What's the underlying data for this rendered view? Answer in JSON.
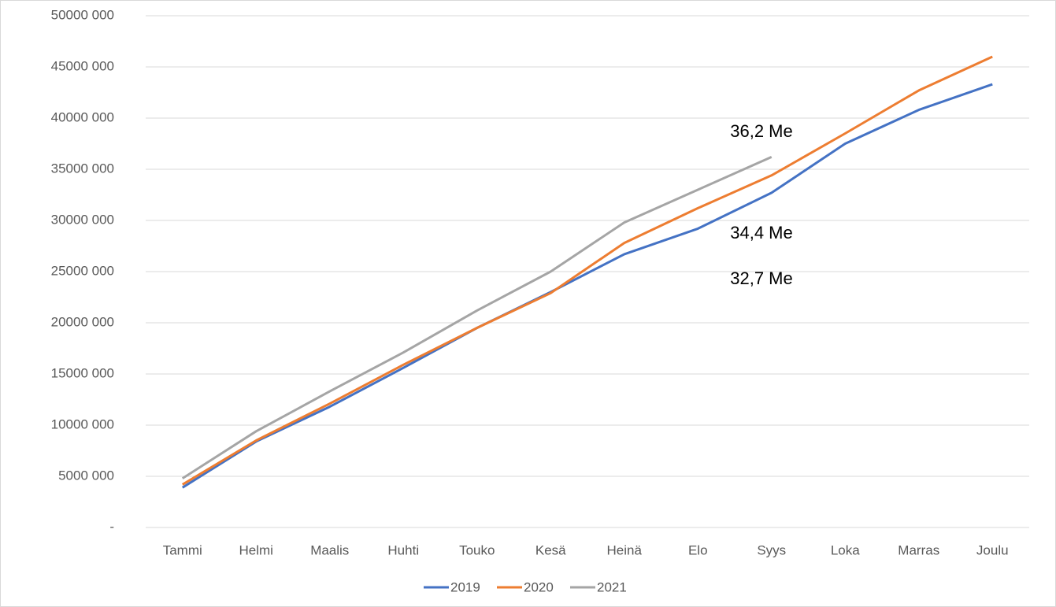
{
  "chart_data": {
    "type": "line",
    "categories": [
      "Tammi",
      "Helmi",
      "Maalis",
      "Huhti",
      "Touko",
      "Kesä",
      "Heinä",
      "Elo",
      "Syys",
      "Loka",
      "Marras",
      "Joulu"
    ],
    "series": [
      {
        "name": "2019",
        "color": "#4472c4",
        "values": [
          3900000,
          8400000,
          11800000,
          15600000,
          19500000,
          23000000,
          26700000,
          29200000,
          32700000,
          37500000,
          40800000,
          43300000
        ]
      },
      {
        "name": "2020",
        "color": "#ed7d31",
        "values": [
          4200000,
          8500000,
          12100000,
          15900000,
          19500000,
          22900000,
          27800000,
          31200000,
          34400000,
          38500000,
          42700000,
          46000000
        ]
      },
      {
        "name": "2021",
        "color": "#a5a5a5",
        "values": [
          4800000,
          9400000,
          13300000,
          17100000,
          21200000,
          25000000,
          29800000,
          33000000,
          36200000,
          null,
          null,
          null
        ]
      }
    ],
    "annotations": [
      "36,2 Me",
      "34,4 Me",
      "32,7 Me"
    ],
    "ylim": [
      0,
      50000000
    ],
    "yticks": [
      {
        "value": 0,
        "label": "-"
      },
      {
        "value": 5000000,
        "label": "5000 000"
      },
      {
        "value": 10000000,
        "label": "10000 000"
      },
      {
        "value": 15000000,
        "label": "15000 000"
      },
      {
        "value": 20000000,
        "label": "20000 000"
      },
      {
        "value": 25000000,
        "label": "25000 000"
      },
      {
        "value": 30000000,
        "label": "30000 000"
      },
      {
        "value": 35000000,
        "label": "35000 000"
      },
      {
        "value": 40000000,
        "label": "40000 000"
      },
      {
        "value": 45000000,
        "label": "45000 000"
      },
      {
        "value": 50000000,
        "label": "50000 000"
      }
    ],
    "grid": true,
    "legend": "bottom"
  }
}
